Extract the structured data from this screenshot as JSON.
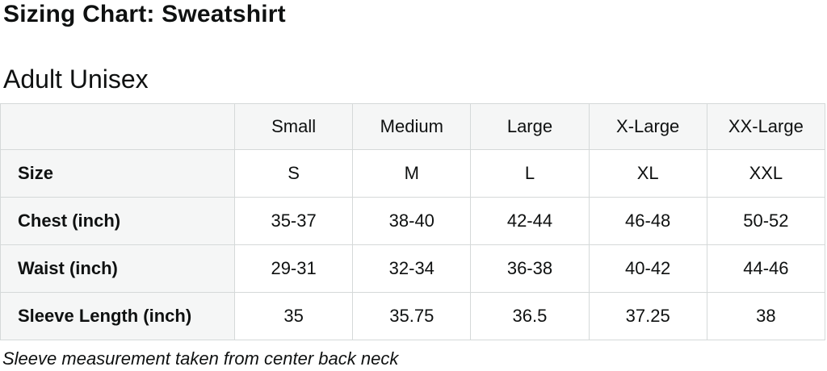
{
  "page": {
    "title": "Sizing Chart: Sweatshirt",
    "subtitle": "Adult Unisex",
    "footnote": "Sleeve measurement taken from center back neck"
  },
  "colors": {
    "text": "#0f1111",
    "border": "#d5d9d9",
    "header_bg": "#f5f6f6",
    "cell_bg": "#ffffff"
  },
  "chart_data": {
    "type": "table",
    "title": "Sizing Chart: Sweatshirt — Adult Unisex",
    "columns": [
      "",
      "Small",
      "Medium",
      "Large",
      "X-Large",
      "XX-Large"
    ],
    "rows": [
      {
        "label": "Size",
        "values": [
          "S",
          "M",
          "L",
          "XL",
          "XXL"
        ]
      },
      {
        "label": "Chest (inch)",
        "values": [
          "35-37",
          "38-40",
          "42-44",
          "46-48",
          "50-52"
        ]
      },
      {
        "label": "Waist (inch)",
        "values": [
          "29-31",
          "32-34",
          "36-38",
          "40-42",
          "44-46"
        ]
      },
      {
        "label": "Sleeve Length (inch)",
        "values": [
          "35",
          "35.75",
          "36.5",
          "37.25",
          "38"
        ]
      }
    ],
    "footnote": "Sleeve measurement taken from center back neck"
  }
}
